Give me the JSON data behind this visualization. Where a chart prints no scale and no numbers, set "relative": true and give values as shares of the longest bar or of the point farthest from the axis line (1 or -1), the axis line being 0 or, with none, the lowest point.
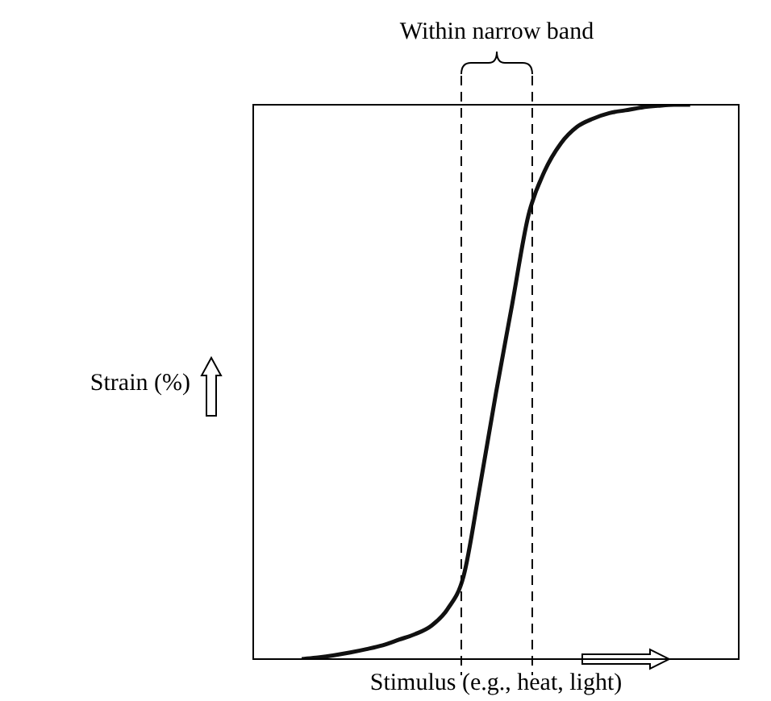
{
  "chart_data": {
    "type": "line",
    "relative": true,
    "xlabel": "Stimulus (e.g., heat, light)",
    "ylabel": "Strain (%)",
    "marker": "none",
    "categories": [
      null,
      null,
      null,
      null,
      null,
      null,
      null,
      null,
      null,
      null,
      null,
      null,
      null,
      null,
      null,
      null,
      null,
      null,
      null,
      null,
      null,
      null,
      null,
      null,
      null,
      null,
      null,
      null,
      null,
      null,
      null
    ],
    "series": [
      {
        "color": "#111111",
        "values": [
          null,
          null,
          null,
          0,
          0.003,
          0.007,
          0.012,
          0.018,
          0.025,
          0.035,
          0.045,
          0.06,
          0.09,
          0.15,
          0.31,
          0.48,
          0.64,
          0.8,
          0.88,
          0.93,
          0.96,
          0.975,
          0.985,
          0.99,
          0.995,
          0.998,
          1,
          1,
          null,
          null,
          null
        ]
      }
    ],
    "annotations": [
      "Within narrow band"
    ]
  }
}
